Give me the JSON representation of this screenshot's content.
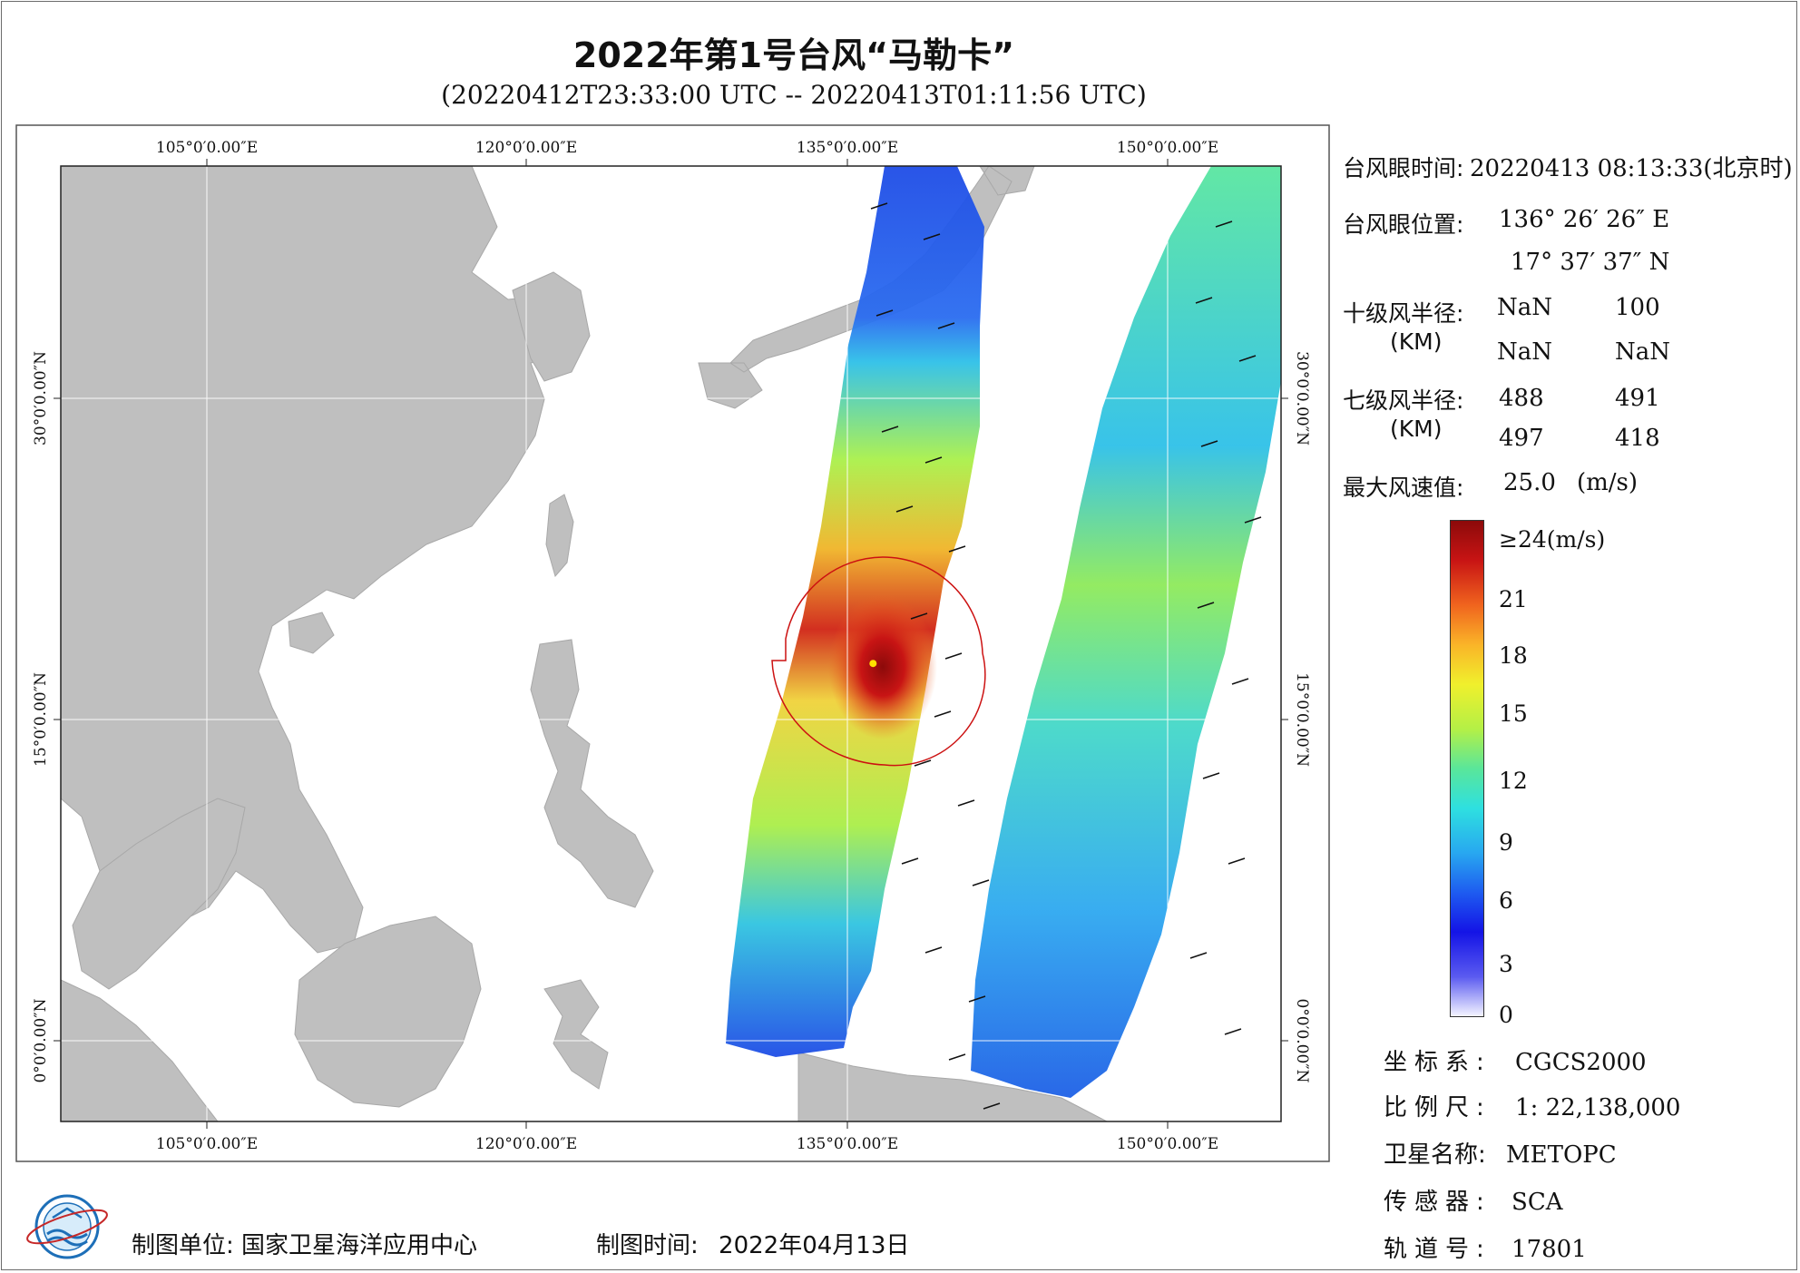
{
  "header": {
    "title": "2022年第1号台风“马勒卡”",
    "subtitle": "(20220412T23:33:00 UTC -- 20220413T01:11:56 UTC)"
  },
  "map": {
    "lon_labels": [
      "105°0′0.00″E",
      "120°0′0.00″E",
      "135°0′0.00″E",
      "150°0′0.00″E"
    ],
    "lat_labels": [
      "30°0′0.00″N",
      "15°0′0.00″N",
      "0°0′0.00″N"
    ],
    "lon_range": [
      98.5,
      155.5
    ],
    "lat_range": [
      -3.8,
      40.9
    ],
    "land_color": "#bfbfbf",
    "wind_radius_color": "#cc1111",
    "typhoon_eye": {
      "lon": 136.44,
      "lat": 17.63
    }
  },
  "panel": {
    "eye_time_label": "台风眼时间:",
    "eye_time_value": "20220413 08:13:33(北京时)",
    "eye_pos_label": "台风眼位置:",
    "eye_lon": "136° 26′ 26″ E",
    "eye_lat": "17° 37′ 37″ N",
    "r10_label": "十级风半径:",
    "r10_unit": "(KM)",
    "r10_values": [
      "NaN",
      "100",
      "NaN",
      "NaN"
    ],
    "r7_label": "七级风半径:",
    "r7_unit": "(KM)",
    "r7_values": [
      "488",
      "491",
      "497",
      "418"
    ],
    "max_wind_label": "最大风速值:",
    "max_wind_value": "25.0",
    "max_wind_unit": "(m/s)"
  },
  "colorbar": {
    "labels": [
      "≥24(m/s)",
      "21",
      "18",
      "15",
      "12",
      "9",
      "6",
      "3",
      "0"
    ],
    "colors": [
      "#f4f4ff",
      "#5a5af0",
      "#1414e6",
      "#1e5cf0",
      "#28a8f0",
      "#2ee0e0",
      "#5ae69a",
      "#b4f046",
      "#f0f02c",
      "#fab428",
      "#f0641e",
      "#c81414",
      "#8c0a0a"
    ]
  },
  "info": {
    "coord_label": "坐标系:",
    "coord_value": "CGCS2000",
    "scale_label": "比例尺:",
    "scale_value": "1: 22,138,000",
    "sat_label": "卫星名称:",
    "sat_value": "METOPC",
    "sensor_label": "传感器:",
    "sensor_value": "SCA",
    "orbit_label": "轨道号:",
    "orbit_value": "17801"
  },
  "footer": {
    "org_label": "制图单位:",
    "org_value": "国家卫星海洋应用中心",
    "date_label": "制图时间:",
    "date_value": "2022年04月13日"
  }
}
